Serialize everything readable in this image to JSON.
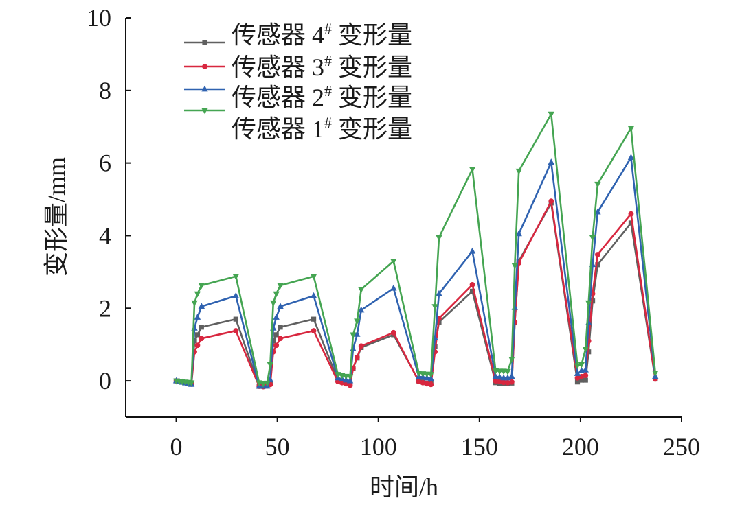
{
  "chart_data": {
    "type": "line",
    "title": "",
    "xlabel": "时间/h",
    "ylabel": "变形量/mm",
    "xlim": [
      -25,
      250
    ],
    "ylim": [
      -1,
      10
    ],
    "xticks": [
      0,
      50,
      100,
      150,
      200,
      250
    ],
    "yticks": [
      0,
      2,
      4,
      6,
      8,
      10
    ],
    "grid": false,
    "legend_position": "top-left",
    "x": [
      0,
      1.5,
      3,
      4.5,
      6,
      7.5,
      9,
      10.5,
      12.5,
      29.5,
      41,
      43,
      45,
      46.5,
      48,
      49.5,
      51.5,
      68,
      80,
      82,
      84,
      86,
      87.5,
      89.5,
      91.5,
      107.5,
      120,
      122,
      124,
      126,
      128,
      130,
      146.5,
      158,
      160,
      162,
      164,
      166,
      167.5,
      169.5,
      185.5,
      198.5,
      200.5,
      202.5,
      204,
      206,
      208.5,
      225,
      237
    ],
    "series": [
      {
        "name": "传感器 4# 变形量",
        "color": "#606060",
        "marker": "square",
        "values": [
          0,
          -0.02,
          -0.03,
          -0.05,
          -0.07,
          -0.09,
          1.1,
          1.27,
          1.48,
          1.7,
          -0.15,
          -0.15,
          -0.13,
          -0.08,
          1.1,
          1.27,
          1.48,
          1.7,
          0.02,
          -0.03,
          -0.06,
          -0.1,
          0.35,
          0.63,
          0.92,
          1.27,
          0.0,
          -0.03,
          -0.06,
          -0.08,
          0.95,
          1.62,
          2.47,
          -0.05,
          -0.07,
          -0.08,
          -0.08,
          -0.06,
          1.6,
          3.3,
          4.9,
          -0.03,
          0.02,
          0.02,
          0.8,
          2.2,
          3.2,
          4.35,
          0.05
        ]
      },
      {
        "name": "传感器 3# 变形量",
        "color": "#d8273f",
        "marker": "circle",
        "values": [
          0,
          -0.02,
          -0.03,
          -0.05,
          -0.07,
          -0.09,
          0.8,
          0.98,
          1.17,
          1.38,
          -0.15,
          -0.16,
          -0.14,
          -0.1,
          0.8,
          0.98,
          1.17,
          1.38,
          -0.02,
          -0.05,
          -0.08,
          -0.12,
          0.35,
          0.65,
          0.96,
          1.33,
          -0.02,
          -0.05,
          -0.08,
          -0.1,
          0.8,
          1.72,
          2.65,
          0.0,
          -0.02,
          -0.04,
          -0.05,
          -0.03,
          1.62,
          3.25,
          4.95,
          0.08,
          0.12,
          0.15,
          1.1,
          2.4,
          3.48,
          4.6,
          0.05
        ]
      },
      {
        "name": "传感器 2# 变形量",
        "color": "#2f62b0",
        "marker": "triangle-up",
        "values": [
          0,
          -0.02,
          -0.04,
          -0.06,
          -0.08,
          -0.1,
          1.45,
          1.75,
          2.05,
          2.34,
          -0.15,
          -0.15,
          -0.15,
          0.03,
          1.45,
          1.75,
          2.05,
          2.34,
          0.08,
          0.05,
          0.02,
          0.0,
          0.88,
          1.28,
          1.95,
          2.55,
          0.12,
          0.1,
          0.08,
          0.06,
          1.18,
          2.4,
          3.57,
          0.12,
          0.1,
          0.08,
          0.08,
          0.12,
          2.02,
          4.05,
          6.02,
          0.2,
          0.28,
          0.3,
          1.6,
          3.2,
          4.65,
          6.15,
          0.12
        ]
      },
      {
        "name": "传感器 1# 变形量",
        "color": "#45a552",
        "marker": "triangle-down",
        "values": [
          0,
          -0.01,
          -0.02,
          -0.03,
          -0.04,
          -0.05,
          2.15,
          2.4,
          2.63,
          2.88,
          -0.05,
          -0.08,
          -0.06,
          0.45,
          2.15,
          2.4,
          2.63,
          2.88,
          0.18,
          0.15,
          0.13,
          0.12,
          1.27,
          1.65,
          2.52,
          3.3,
          0.22,
          0.2,
          0.19,
          0.18,
          2.05,
          3.95,
          5.83,
          0.28,
          0.27,
          0.27,
          0.26,
          0.6,
          3.18,
          5.78,
          7.35,
          0.42,
          0.45,
          0.88,
          2.15,
          3.95,
          5.42,
          6.96,
          0.22
        ]
      }
    ]
  }
}
